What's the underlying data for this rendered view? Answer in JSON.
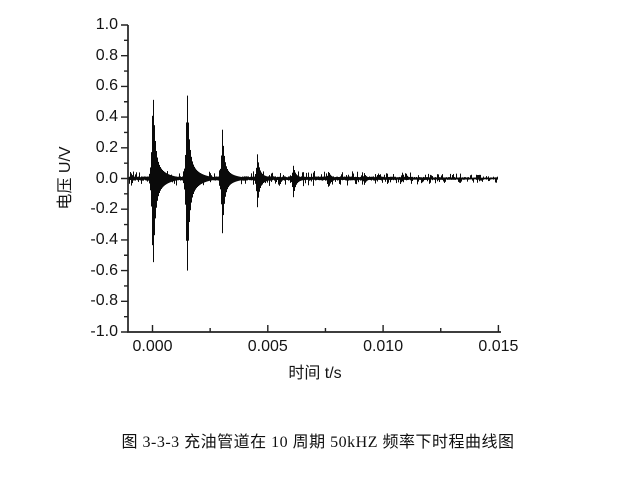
{
  "figure": {
    "caption": "图 3-3-3  充油管道在 10 周期 50kHZ 频率下时程曲线图",
    "background_color": "#ffffff"
  },
  "chart_data": {
    "type": "line",
    "subtype": "waveform-envelope",
    "title": "",
    "xlabel": "时间 t/s",
    "ylabel": "电压 U/V",
    "line_color": "#0a0a0a",
    "axis_color": "#222222",
    "grid": false,
    "legend": null,
    "xlim": [
      -0.0011,
      0.0152
    ],
    "ylim": [
      -1.0,
      1.0
    ],
    "xticks": {
      "major_values": [
        0.0,
        0.005,
        0.01,
        0.015
      ],
      "major_labels": [
        "0.000",
        "0.005",
        "0.010",
        "0.015"
      ],
      "minor_values": [
        0.0025,
        0.0075,
        0.0125
      ],
      "direction": "in"
    },
    "yticks": {
      "major_values": [
        1.0,
        0.8,
        0.6,
        0.4,
        0.2,
        0.0,
        -0.2,
        -0.4,
        -0.6,
        -0.8,
        -1.0
      ],
      "major_labels": [
        "1.0",
        "0.8",
        "0.6",
        "0.4",
        "0.2",
        "0.0",
        "-0.2",
        "-0.4",
        "-0.6",
        "-0.8",
        "-1.0"
      ],
      "minor_values": [
        0.9,
        0.7,
        0.5,
        0.3,
        0.1,
        -0.1,
        -0.3,
        -0.5,
        -0.7,
        -0.9
      ],
      "direction": "out"
    },
    "series": [
      {
        "name": "voltage-waveform",
        "description": "50 kHz 10-cycle pulse echo train: decaying bursts over noise floor",
        "t_start": -0.00106,
        "t_end": 0.015,
        "noise_floor_v": 0.012,
        "burst_period_s": 0.00152,
        "bursts": [
          {
            "t": 0.0,
            "peak_pos": 0.63,
            "peak_neg": 0.67
          },
          {
            "t": 0.00148,
            "peak_pos": 0.63,
            "peak_neg": 0.7
          },
          {
            "t": 0.00301,
            "peak_pos": 0.33,
            "peak_neg": 0.37
          },
          {
            "t": 0.00453,
            "peak_pos": 0.16,
            "peak_neg": 0.19
          },
          {
            "t": 0.00609,
            "peak_pos": 0.085,
            "peak_neg": 0.125
          },
          {
            "t": 0.00762,
            "peak_pos": 0.05,
            "peak_neg": 0.065
          },
          {
            "t": 0.00917,
            "peak_pos": 0.034,
            "peak_neg": 0.042
          },
          {
            "t": 0.01078,
            "peak_pos": 0.022,
            "peak_neg": 0.026
          }
        ]
      }
    ]
  }
}
